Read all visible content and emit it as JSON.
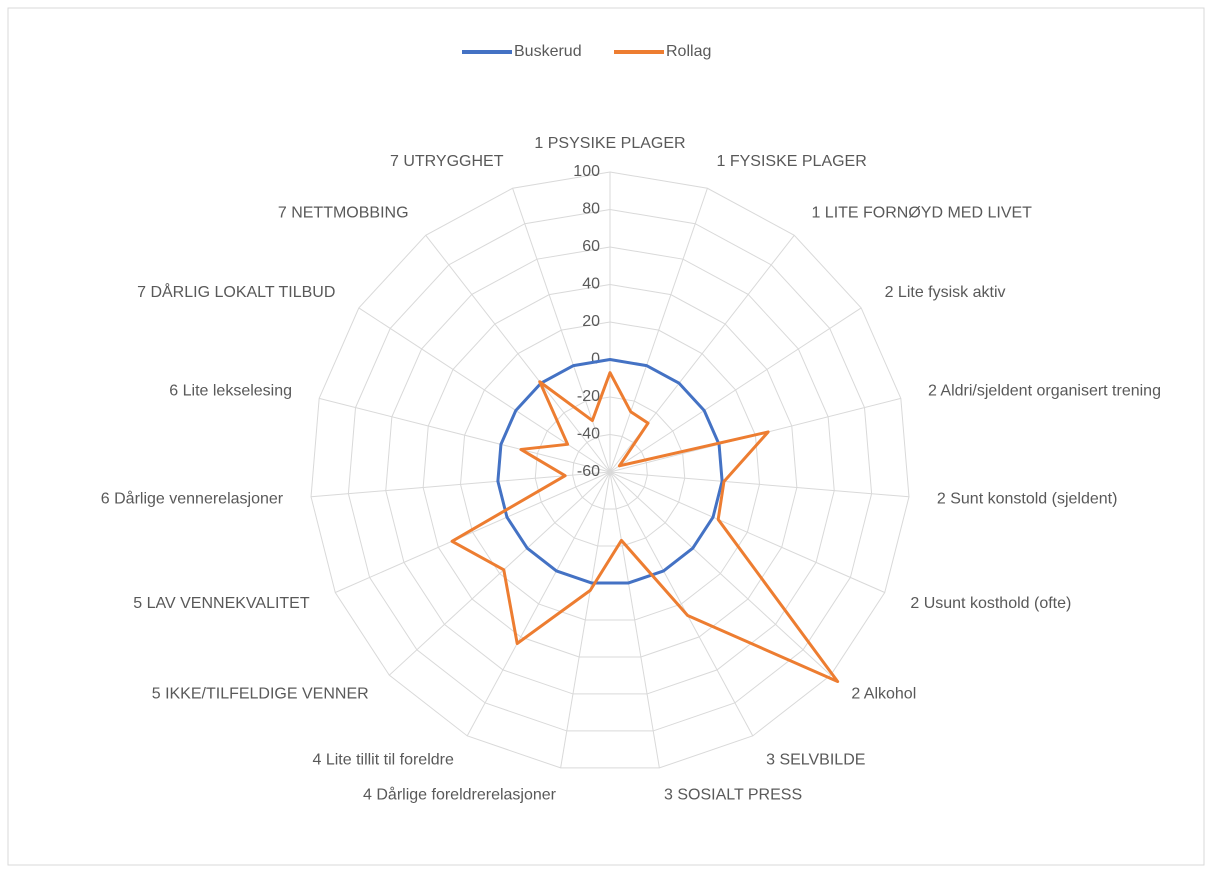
{
  "chart_data": {
    "type": "radar",
    "categories": [
      "1 PSYSIKE PLAGER",
      "1 FYSISKE PLAGER",
      "1 LITE FORNØYD MED LIVET",
      "2 Lite fysisk aktiv",
      "2 Aldri/sjeldent organisert trening",
      "2 Sunt konstold (sjeldent)",
      "2 Usunt kosthold (ofte)",
      "2 Alkohol",
      "3 SELVBILDE",
      "3 SOSIALT PRESS",
      "4 Dårlige foreldrerelasjoner",
      "4 Lite tillit til foreldre",
      "5 IKKE/TILFELDIGE VENNER",
      "5 LAV VENNEKVALITET",
      "6 Dårlige vennerelasjoner",
      "6 Lite lekselesing",
      "7 DÅRLIG LOKALT TILBUD",
      "7 NETTMOBBING",
      "7 UTRYGGHET"
    ],
    "series": [
      {
        "name": "Buskerud",
        "color": "#4472c4",
        "values": [
          0,
          0,
          0,
          0,
          0,
          0,
          0,
          0,
          0,
          0,
          0,
          0,
          0,
          0,
          0,
          0,
          0,
          0,
          0
        ]
      },
      {
        "name": "Rollag",
        "color": "#ed7d31",
        "values": [
          -7,
          -26,
          -27,
          -54,
          27,
          1,
          3,
          105,
          27,
          -23,
          4,
          44,
          17,
          32,
          -36,
          -11,
          -33,
          1,
          -31
        ]
      }
    ],
    "ylim": [
      -60,
      100
    ],
    "yticks": [
      -60,
      -40,
      -20,
      0,
      20,
      40,
      60,
      80,
      100
    ],
    "grid": true,
    "legend": "top"
  }
}
